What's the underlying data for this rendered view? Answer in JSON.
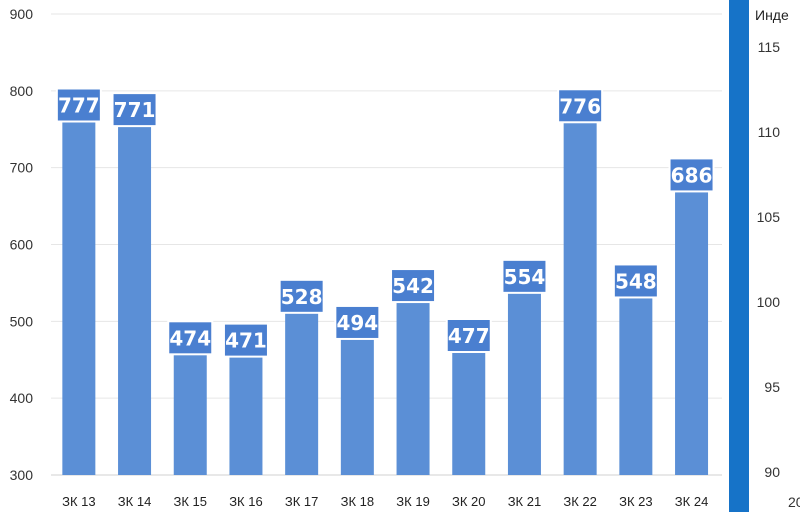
{
  "chart_data": [
    {
      "type": "bar",
      "categories": [
        "ЗК 13",
        "ЗК 14",
        "ЗК 15",
        "ЗК 16",
        "ЗК 17",
        "ЗК 18",
        "ЗК 19",
        "ЗК 20",
        "ЗК 21",
        "ЗК 22",
        "ЗК 23",
        "ЗК 24"
      ],
      "values": [
        777,
        771,
        474,
        471,
        528,
        494,
        542,
        477,
        554,
        776,
        548,
        686
      ],
      "ylim": [
        300,
        900
      ],
      "yticks": [
        300,
        400,
        500,
        600,
        700,
        800,
        900
      ],
      "grid": true,
      "data_labels": true,
      "bar_color": "#5b8fd6",
      "label_box_color": "#4a7fd0"
    },
    {
      "type": "line",
      "title": "Инде",
      "ylim": [
        90,
        115
      ],
      "yticks": [
        90,
        95,
        100,
        105,
        110,
        115
      ],
      "x_partial_label": "20"
    }
  ],
  "colors": {
    "divider": "#1673c8",
    "grid": "#e6e6e6"
  }
}
